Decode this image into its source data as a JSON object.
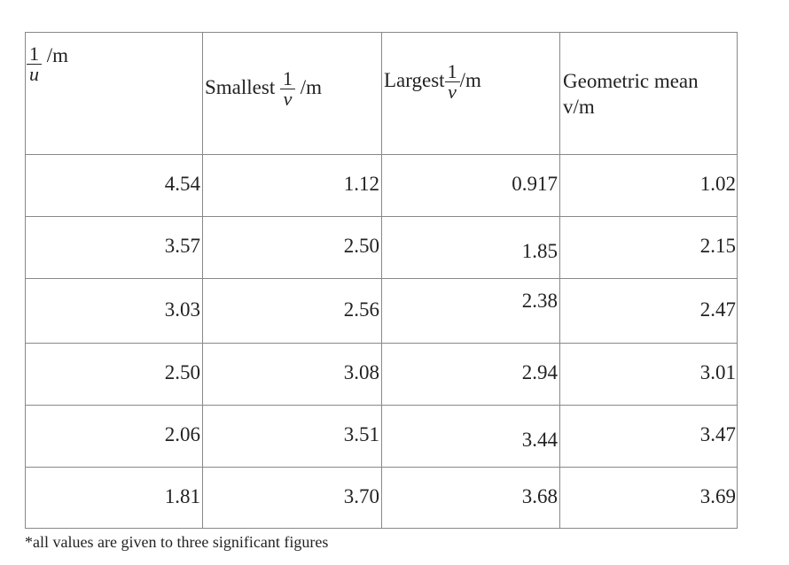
{
  "table": {
    "header": [
      {
        "numerator": "1",
        "denominator": "u",
        "unit": "/m"
      },
      {
        "label": "Smallest",
        "numerator": "1",
        "denominator": "v",
        "unit": "/m"
      },
      {
        "label": "Largest",
        "numerator": "1",
        "denominator": "v",
        "unit": "/m"
      },
      {
        "label": "Geometric mean",
        "unit": "v/m"
      }
    ],
    "rows": [
      [
        "4.54",
        "1.12",
        "0.917",
        "1.02"
      ],
      [
        "3.57",
        "2.50",
        "1.85",
        "2.15"
      ],
      [
        "3.03",
        "2.56",
        "2.38",
        "2.47"
      ],
      [
        "2.50",
        "3.08",
        "2.94",
        "3.01"
      ],
      [
        "2.06",
        "3.51",
        "3.44",
        "3.47"
      ],
      [
        "1.81",
        "3.70",
        "3.68",
        "3.69"
      ]
    ]
  },
  "footnote": "*all values are given to three significant figures"
}
